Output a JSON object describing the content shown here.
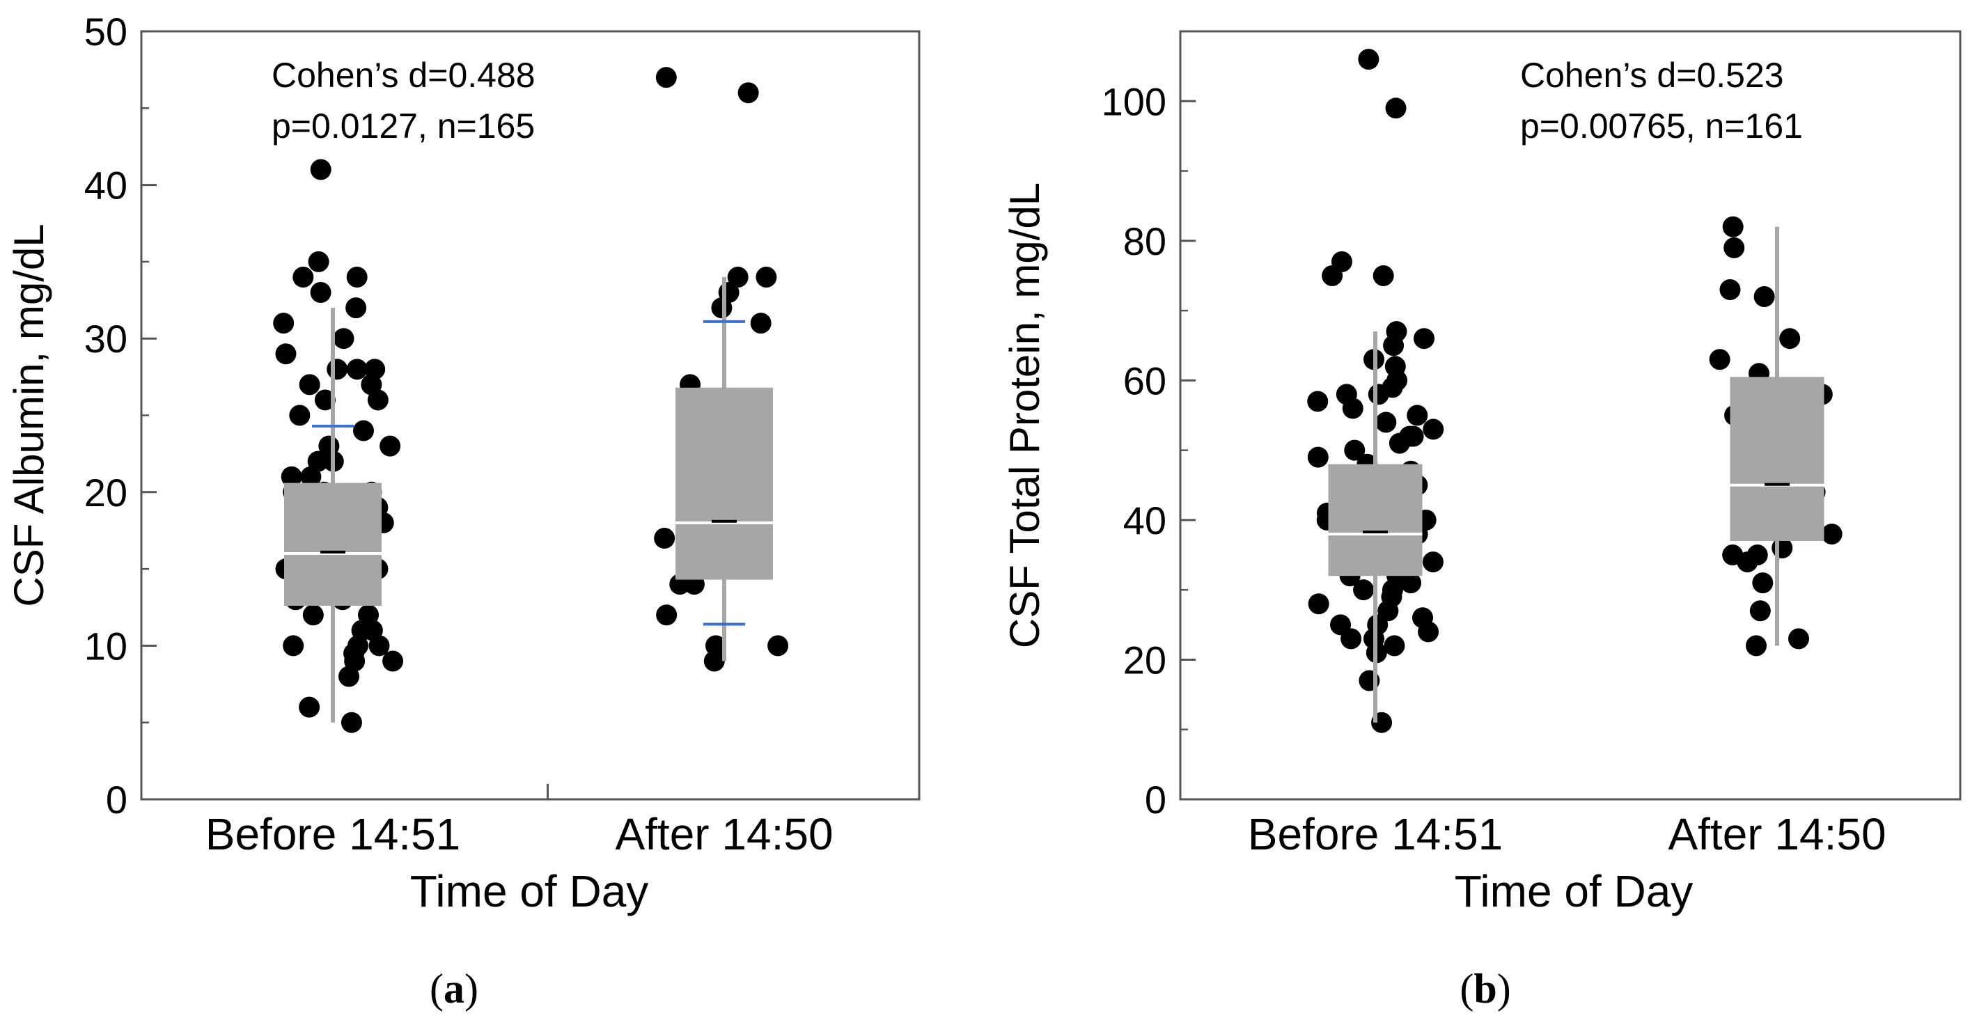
{
  "chart_data": [
    {
      "type": "box",
      "panel_label": "a",
      "title": "",
      "xlabel": "Time of Day",
      "ylabel": "CSF Albumin, mg/dL",
      "ylim": [
        0,
        50
      ],
      "yticks": [
        0,
        10,
        20,
        30,
        40,
        50
      ],
      "minor_yticks": [
        5,
        15,
        25,
        35,
        45
      ],
      "annotation": [
        "Cohen’s d=0.488",
        "p=0.0127, n=165"
      ],
      "groups": [
        {
          "name": "Before 14:51",
          "q1": 12.6,
          "median": 16.0,
          "q3": 20.6,
          "mean": 16.1,
          "whisker_low": 5.0,
          "whisker_high": 32.0,
          "mean_sd_marks": [
            24.3
          ],
          "points": [
            5,
            6,
            8,
            9,
            9,
            9.5,
            10,
            10,
            10,
            11,
            11,
            12,
            12,
            13,
            13,
            14,
            14,
            14,
            15,
            15,
            15,
            16,
            16,
            17,
            17,
            18,
            18,
            19,
            19,
            20,
            20,
            20,
            21,
            21,
            22,
            22,
            23,
            23,
            24,
            25,
            26,
            26,
            27,
            27,
            28,
            28,
            28,
            29,
            30,
            31,
            32,
            33,
            34,
            34,
            35,
            41
          ]
        },
        {
          "name": "After 14:50",
          "q1": 14.3,
          "median": 18.0,
          "q3": 26.8,
          "mean": 18.1,
          "whisker_low": 9.0,
          "whisker_high": 34.0,
          "mean_sd_marks": [
            11.4,
            31.1
          ],
          "points": [
            9,
            10,
            10,
            12,
            14,
            14,
            16,
            17,
            19,
            21,
            24,
            27,
            31,
            32,
            33,
            34,
            34,
            46,
            47
          ]
        }
      ]
    },
    {
      "type": "box",
      "panel_label": "b",
      "title": "",
      "xlabel": "Time of Day",
      "ylabel": "CSF Total Protein, mg/dL",
      "ylim": [
        0,
        110
      ],
      "yticks": [
        0,
        20,
        40,
        60,
        80,
        100
      ],
      "minor_yticks": [
        10,
        30,
        50,
        70,
        90
      ],
      "annotation": [
        "Cohen’s d=0.523",
        "p=0.00765, n=161"
      ],
      "groups": [
        {
          "name": "Before 14:51",
          "q1": 32.0,
          "median": 38.0,
          "q3": 48.0,
          "mean": 38.3,
          "whisker_low": 11.0,
          "whisker_high": 67.0,
          "mean_sd_marks": [],
          "points": [
            11,
            17,
            21,
            22,
            23,
            23,
            24,
            25,
            25,
            26,
            27,
            28,
            29,
            30,
            30,
            31,
            32,
            32,
            33,
            34,
            34,
            35,
            36,
            37,
            38,
            38,
            39,
            40,
            40,
            41,
            42,
            43,
            43,
            44,
            45,
            46,
            47,
            47,
            48,
            49,
            50,
            51,
            52,
            52,
            53,
            54,
            55,
            56,
            57,
            58,
            58,
            59,
            60,
            62,
            63,
            65,
            66,
            67,
            75,
            75,
            77,
            99,
            106
          ]
        },
        {
          "name": "After 14:50",
          "q1": 37.0,
          "median": 45.0,
          "q3": 60.5,
          "mean": 45.1,
          "whisker_low": 22.0,
          "whisker_high": 82.0,
          "mean_sd_marks": [],
          "points": [
            22,
            23,
            27,
            31,
            34,
            35,
            35,
            36,
            38,
            40,
            42,
            44,
            46,
            48,
            50,
            52,
            55,
            58,
            61,
            63,
            66,
            72,
            73,
            79,
            82
          ]
        }
      ]
    }
  ]
}
